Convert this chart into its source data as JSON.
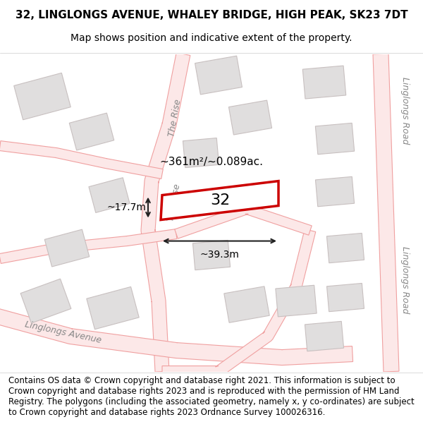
{
  "title_line1": "32, LINGLONGS AVENUE, WHALEY BRIDGE, HIGH PEAK, SK23 7DT",
  "title_line2": "Map shows position and indicative extent of the property.",
  "footer_text": "Contains OS data © Crown copyright and database right 2021. This information is subject to Crown copyright and database rights 2023 and is reproduced with the permission of HM Land Registry. The polygons (including the associated geometry, namely x, y co-ordinates) are subject to Crown copyright and database rights 2023 Ordnance Survey 100026316.",
  "background_color": "#f5f5f5",
  "map_background": "#f0eeee",
  "plot_bg": "#ffffff",
  "road_color": "#f0a0a0",
  "road_fill": "#fce8e8",
  "building_fill": "#e0dede",
  "building_edge": "#c8c0c0",
  "highlight_plot_color": "#cc0000",
  "highlight_plot_fill": "#ffffff",
  "road_line_color": "#d08080",
  "street_label_color": "#888888",
  "dim_line_color": "#222222",
  "number_label": "32",
  "area_label": "~361m²/~0.089ac.",
  "width_label": "~39.3m",
  "height_label": "~17.7m",
  "title_fontsize": 11,
  "subtitle_fontsize": 10,
  "footer_fontsize": 8.5
}
